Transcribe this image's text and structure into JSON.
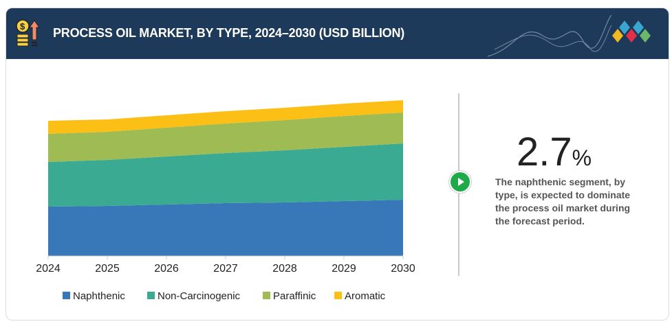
{
  "header": {
    "title": "PROCESS OIL MARKET, BY TYPE, 2024–2030 (USD BILLION)"
  },
  "highlight": {
    "value": "2.7",
    "unit": "%",
    "text": "The naphthenic segment, by type, is expected to dominate the process oil market during the forecast period."
  },
  "chart_data": {
    "type": "area",
    "stacked": true,
    "title": "PROCESS OIL MARKET, BY TYPE, 2024–2030 (USD BILLION)",
    "x": [
      "2024",
      "2025",
      "2026",
      "2027",
      "2028",
      "2029",
      "2030"
    ],
    "ylim": [
      0,
      250
    ],
    "note": "values estimated in relative units; no y-axis labels shown",
    "series": [
      {
        "name": "Naphthenic",
        "color": "#3878b8",
        "values": [
          72,
          73,
          75,
          77,
          78,
          80,
          82
        ]
      },
      {
        "name": "Non-Carcinogenic",
        "color": "#3aaa92",
        "values": [
          65,
          67,
          70,
          73,
          76,
          79,
          82
        ]
      },
      {
        "name": "Paraffinic",
        "color": "#9fbb54",
        "values": [
          41,
          41,
          42,
          43,
          44,
          45,
          45
        ]
      },
      {
        "name": "Aromatic",
        "color": "#fbbf15",
        "values": [
          19,
          18,
          18,
          18,
          18,
          18,
          18
        ]
      }
    ],
    "legend": "bottom",
    "grid": false
  }
}
